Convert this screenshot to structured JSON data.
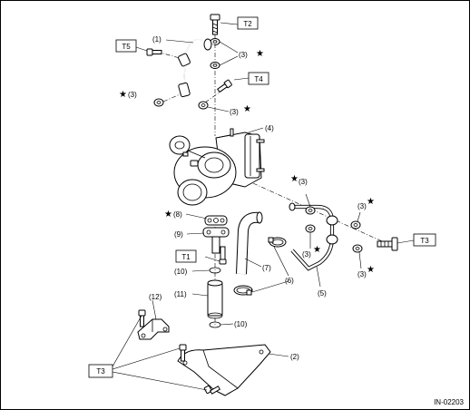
{
  "figure_id": "IN-02203",
  "torque_labels": {
    "t1": "T1",
    "t2": "T2",
    "t3": "T3",
    "t4": "T4",
    "t5": "T5"
  },
  "callouts": {
    "c1": "(1)",
    "c2": "(2)",
    "c3a": "(3)",
    "c3b": "(3)",
    "c3c": "(3)",
    "c3d": "(3)",
    "c3e": "(3)",
    "c3f": "(3)",
    "c3g": "(3)",
    "c3h": "(3)",
    "c4": "(4)",
    "c5": "(5)",
    "c6": "(6)",
    "c7": "(7)",
    "c8": "(8)",
    "c9": "(9)",
    "c10a": "(10)",
    "c10b": "(10)",
    "c11": "(11)",
    "c12": "(12)"
  },
  "star_symbol": "★"
}
